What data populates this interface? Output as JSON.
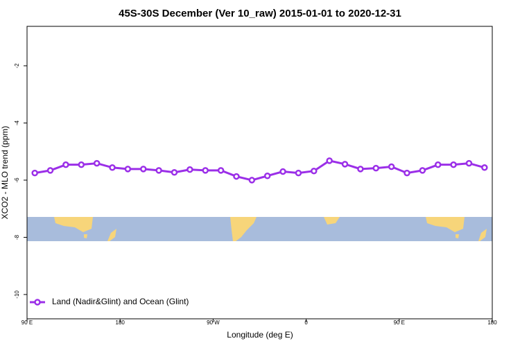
{
  "chart_data": {
    "type": "line",
    "title": "45S-30S December (Ver 10_raw)   2015-01-01 to 2020-12-31",
    "xlabel": "Longitude (deg E)",
    "ylabel": "XCO2 - MLO trend (ppm)",
    "x": [
      97.5,
      112.5,
      127.5,
      142.5,
      157.5,
      172.5,
      187.5,
      202.5,
      217.5,
      232.5,
      247.5,
      262.5,
      277.5,
      292.5,
      307.5,
      322.5,
      337.5,
      352.5,
      367.5,
      382.5,
      397.5,
      412.5,
      427.5,
      442.5,
      457.5,
      472.5,
      487.5,
      502.5,
      517.5,
      532.5
    ],
    "series": [
      {
        "name": "Land (Nadir&Glint) and Ocean (Glint)",
        "color": "#9b2fe8",
        "values": [
          -5.75,
          -5.66,
          -5.46,
          -5.46,
          -5.41,
          -5.56,
          -5.61,
          -5.61,
          -5.66,
          -5.73,
          -5.63,
          -5.66,
          -5.66,
          -5.87,
          -6.0,
          -5.85,
          -5.7,
          -5.75,
          -5.68,
          -5.32,
          -5.44,
          -5.61,
          -5.58,
          -5.53,
          -5.75,
          -5.66,
          -5.46,
          -5.46,
          -5.41,
          -5.56
        ]
      }
    ],
    "xlim": [
      90,
      540
    ],
    "xticks": [
      {
        "value": 90,
        "label": "90 E"
      },
      180,
      {
        "value": 270,
        "label": "90 W"
      },
      {
        "value": 360,
        "label": "0"
      },
      {
        "value": 450,
        "label": "90 E"
      },
      {
        "value": 540,
        "label": "180"
      }
    ],
    "ylim": [
      -10.85,
      -0.62
    ],
    "yticks": [
      -10,
      -8,
      -6,
      -4,
      -2
    ],
    "legend": "bottom-left"
  }
}
